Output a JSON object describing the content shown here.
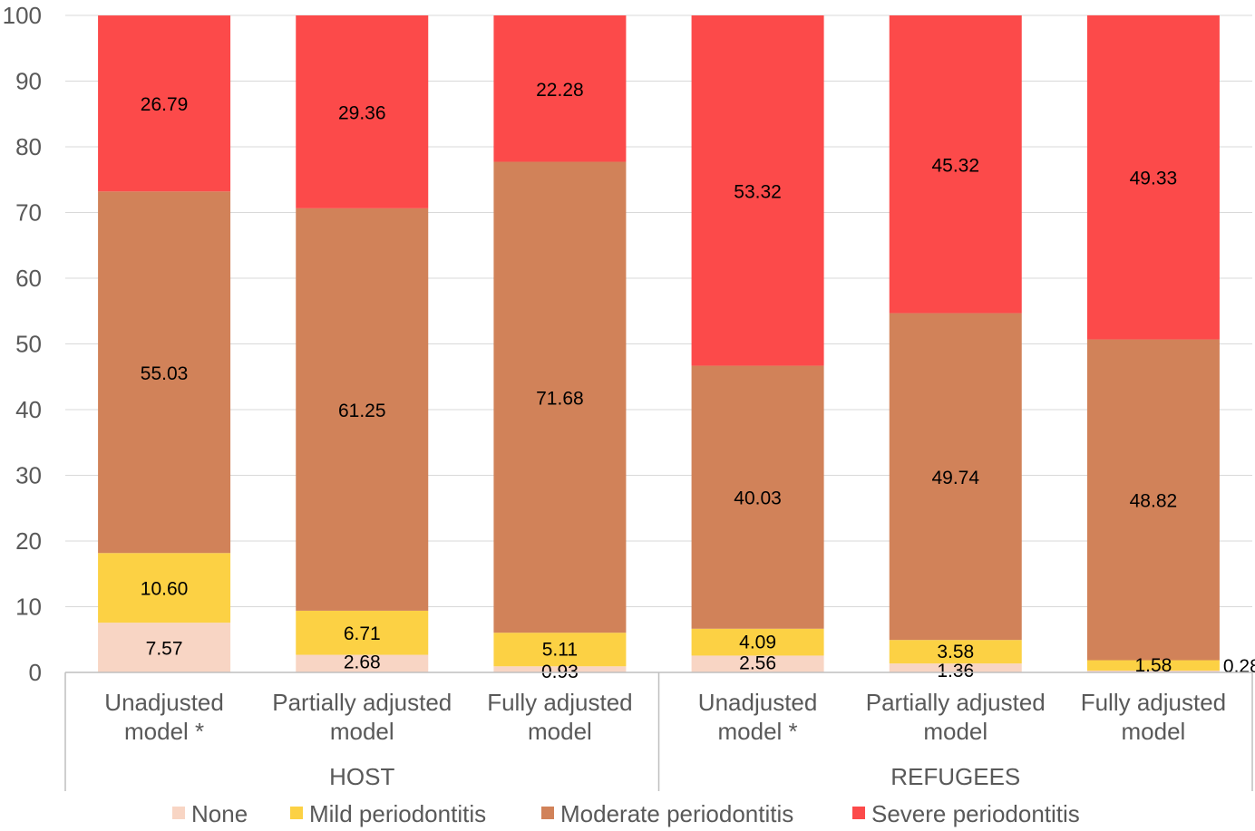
{
  "chart_data": {
    "type": "bar",
    "stacked": true,
    "title": "",
    "xlabel": "",
    "ylabel": "",
    "ylim": [
      0,
      100
    ],
    "yticks": [
      0,
      10,
      20,
      30,
      40,
      50,
      60,
      70,
      80,
      90,
      100
    ],
    "groups": [
      {
        "name": "HOST",
        "categories": [
          0,
          1,
          2
        ]
      },
      {
        "name": "REFUGEES",
        "categories": [
          3,
          4,
          5
        ]
      }
    ],
    "categories": [
      [
        "Unadjusted",
        "model *"
      ],
      [
        "Partially adjusted",
        "model"
      ],
      [
        "Fully adjusted",
        "model"
      ],
      [
        "Unadjusted",
        "model *"
      ],
      [
        "Partially adjusted",
        "model"
      ],
      [
        "Fully adjusted",
        "model"
      ]
    ],
    "series": [
      {
        "name": "None",
        "color": "#F8D5C4",
        "values": [
          7.57,
          2.68,
          0.93,
          2.56,
          1.36,
          0.28
        ],
        "labels": [
          "7.57",
          "2.68",
          "0.93",
          "2.56",
          "1.36",
          "0.28"
        ]
      },
      {
        "name": "Mild periodontitis",
        "color": "#FCD144",
        "values": [
          10.6,
          6.71,
          5.11,
          4.09,
          3.58,
          1.58
        ],
        "labels": [
          "10.60",
          "6.71",
          "5.11",
          "4.09",
          "3.58",
          "1.58"
        ]
      },
      {
        "name": "Moderate periodontitis",
        "color": "#D18259",
        "values": [
          55.03,
          61.25,
          71.68,
          40.03,
          49.74,
          48.82
        ],
        "labels": [
          "55.03",
          "61.25",
          "71.68",
          "40.03",
          "49.74",
          "48.82"
        ]
      },
      {
        "name": "Severe periodontitis",
        "color": "#FC4A4A",
        "values": [
          26.79,
          29.36,
          22.28,
          53.32,
          45.32,
          49.33
        ],
        "labels": [
          "26.79",
          "29.36",
          "22.28",
          "53.32",
          "45.32",
          "49.33"
        ]
      }
    ],
    "grid": true,
    "legend": "bottom"
  }
}
